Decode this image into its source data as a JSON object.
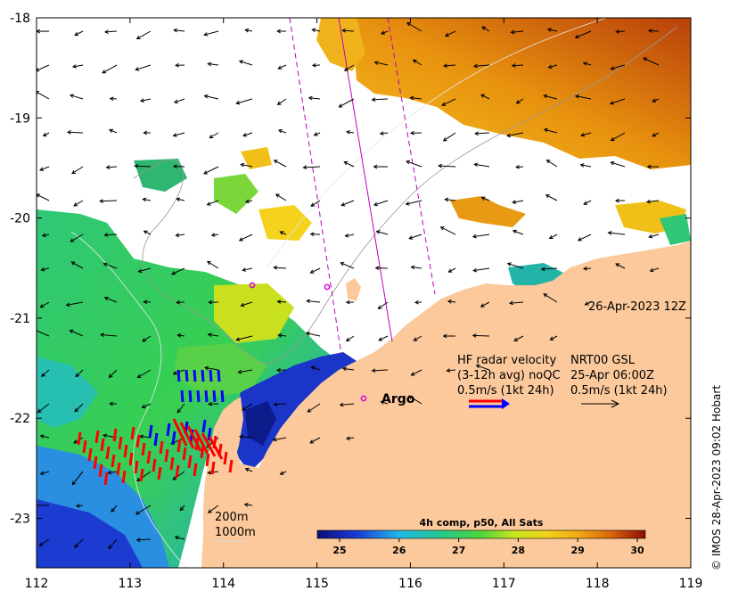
{
  "map": {
    "timestamp": "26-Apr-2023 12Z",
    "legend": {
      "hf_title": "HF radar velocity",
      "hf_detail": "(3-12h avg) noQC",
      "hf_scale": "0.5m/s (1kt 24h)",
      "gsl_title": "NRT00 GSL",
      "gsl_date": "25-Apr 06:00Z",
      "gsl_scale": "0.5m/s (1kt 24h)",
      "argo_label": "Argo"
    },
    "isobaths": [
      "200m",
      "1000m"
    ],
    "credit": "© IMOS 28-Apr-2023 09:02 Hobart",
    "colorbar": {
      "title": "4h comp, p50, All Sats",
      "ticks": [
        "25",
        "26",
        "27",
        "28",
        "29",
        "30"
      ]
    },
    "x_ticks": [
      "112",
      "113",
      "114",
      "115",
      "116",
      "117",
      "118",
      "119"
    ],
    "y_ticks": [
      "-18",
      "-19",
      "-20",
      "-21",
      "-22",
      "-23"
    ],
    "colors": {
      "land": "#fbc99b",
      "argo_marker": "#e000e0",
      "hf_arrow_red": "#ff0000",
      "hf_arrow_blue": "#0000ff",
      "track_line": "#c000c0"
    }
  }
}
